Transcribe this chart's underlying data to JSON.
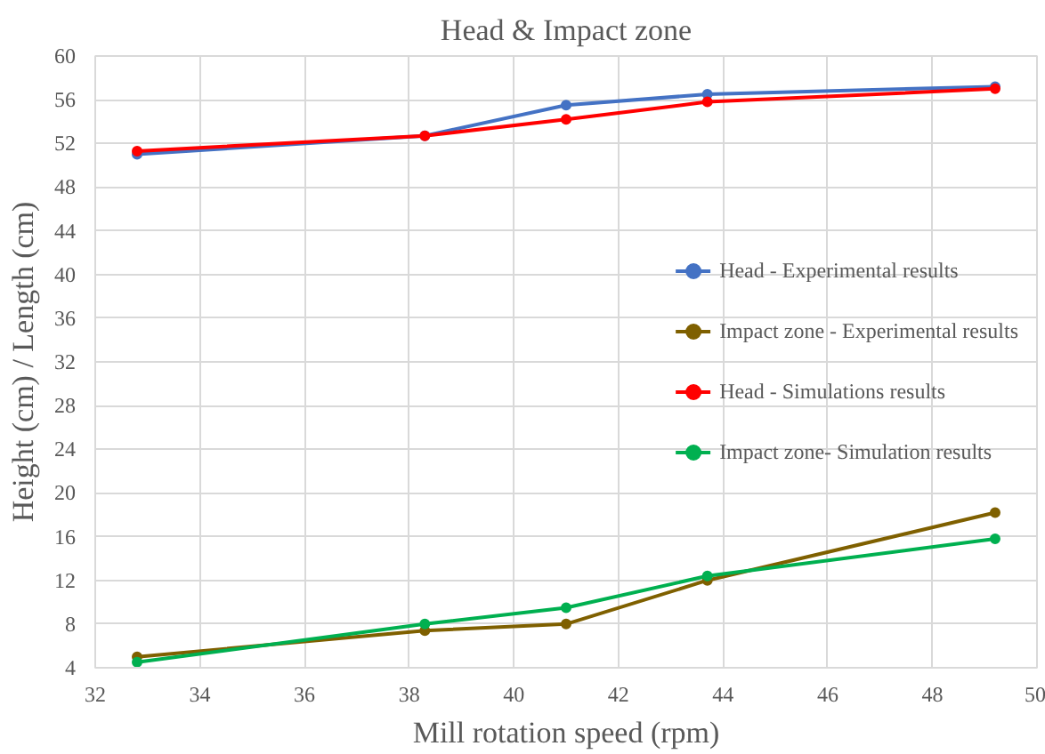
{
  "chart_data": {
    "type": "line",
    "title": "Head & Impact zone",
    "xlabel": "Mill rotation speed (rpm)",
    "ylabel": "Height (cm) / Length (cm)",
    "x": [
      32.8,
      38.3,
      41.0,
      43.7,
      49.2
    ],
    "series": [
      {
        "name": "Head - Experimental results",
        "color": "#4472c4",
        "values": [
          51.0,
          52.7,
          55.5,
          56.5,
          57.2
        ]
      },
      {
        "name": "Impact zone - Experimental results",
        "color": "#7f6000",
        "values": [
          5.0,
          7.4,
          8.0,
          12.0,
          18.2
        ]
      },
      {
        "name": "Head - Simulations results",
        "color": "#ff0000",
        "values": [
          51.3,
          52.7,
          54.2,
          55.8,
          57.0
        ]
      },
      {
        "name": "Impact zone- Simulation results",
        "color": "#00b050",
        "values": [
          4.5,
          8.0,
          9.5,
          12.4,
          15.8
        ]
      }
    ],
    "xlim": [
      32,
      50
    ],
    "xticks": [
      32,
      34,
      36,
      38,
      40,
      42,
      44,
      46,
      48,
      50
    ],
    "ylim": [
      4,
      60
    ],
    "yticks": [
      4,
      8,
      12,
      16,
      20,
      24,
      28,
      32,
      36,
      40,
      44,
      48,
      52,
      56,
      60
    ],
    "grid": true,
    "legend": "right",
    "marker": "circle",
    "line_style": "solid"
  }
}
